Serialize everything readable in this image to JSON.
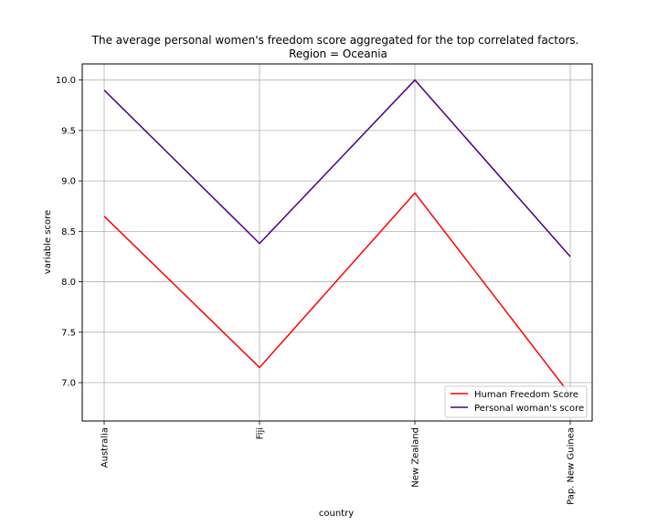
{
  "chart_data": {
    "type": "line",
    "title": "The average personal women's freedom score aggregated for the top correlated factors.",
    "subtitle": "Region = Oceania",
    "xlabel": "country",
    "ylabel": "variable score",
    "categories": [
      "Australia",
      "Fiji",
      "New Zealand",
      "Pap. New Guinea"
    ],
    "ylim": [
      6.62,
      10.16
    ],
    "yticks": [
      7.0,
      7.5,
      8.0,
      8.5,
      9.0,
      9.5,
      10.0
    ],
    "ytick_labels": [
      "7.0",
      "7.5",
      "8.0",
      "8.5",
      "9.0",
      "9.5",
      "10.0"
    ],
    "grid": true,
    "legend_position": "lower-right",
    "series": [
      {
        "name": "Human Freedom Score",
        "color": "#ff0000",
        "values": [
          8.65,
          7.15,
          8.88,
          6.88
        ]
      },
      {
        "name": "Personal woman's score",
        "color": "#4b0082",
        "values": [
          9.9,
          8.38,
          10.0,
          8.25
        ]
      }
    ]
  }
}
